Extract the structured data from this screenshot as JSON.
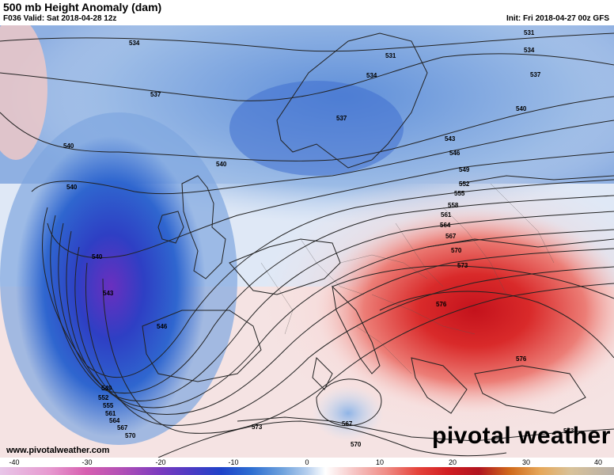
{
  "header": {
    "title": "500 mb Height Anomaly (dam)",
    "valid": "F036 Valid: Sat 2018-04-28 12z",
    "init": "Init: Fri 2018-04-27 00z GFS"
  },
  "footer": {
    "website": "www.pivotalweather.com",
    "brand": "pivotal weather"
  },
  "colorbar": {
    "ticks": [
      "-40",
      "-30",
      "-20",
      "-10",
      "0",
      "10",
      "20",
      "30",
      "40"
    ]
  },
  "contour_labels": [
    "534",
    "537",
    "540",
    "540",
    "540",
    "543",
    "546",
    "549",
    "552",
    "555",
    "561",
    "564",
    "567",
    "570",
    "531",
    "531",
    "534",
    "534",
    "537",
    "537",
    "540",
    "540",
    "543",
    "546",
    "549",
    "552",
    "555",
    "558",
    "561",
    "564",
    "567",
    "570",
    "573",
    "576",
    "576",
    "573",
    "567",
    "570",
    "573"
  ],
  "colors": {
    "negative": "#1f43c9",
    "positive": "#d11e22"
  }
}
